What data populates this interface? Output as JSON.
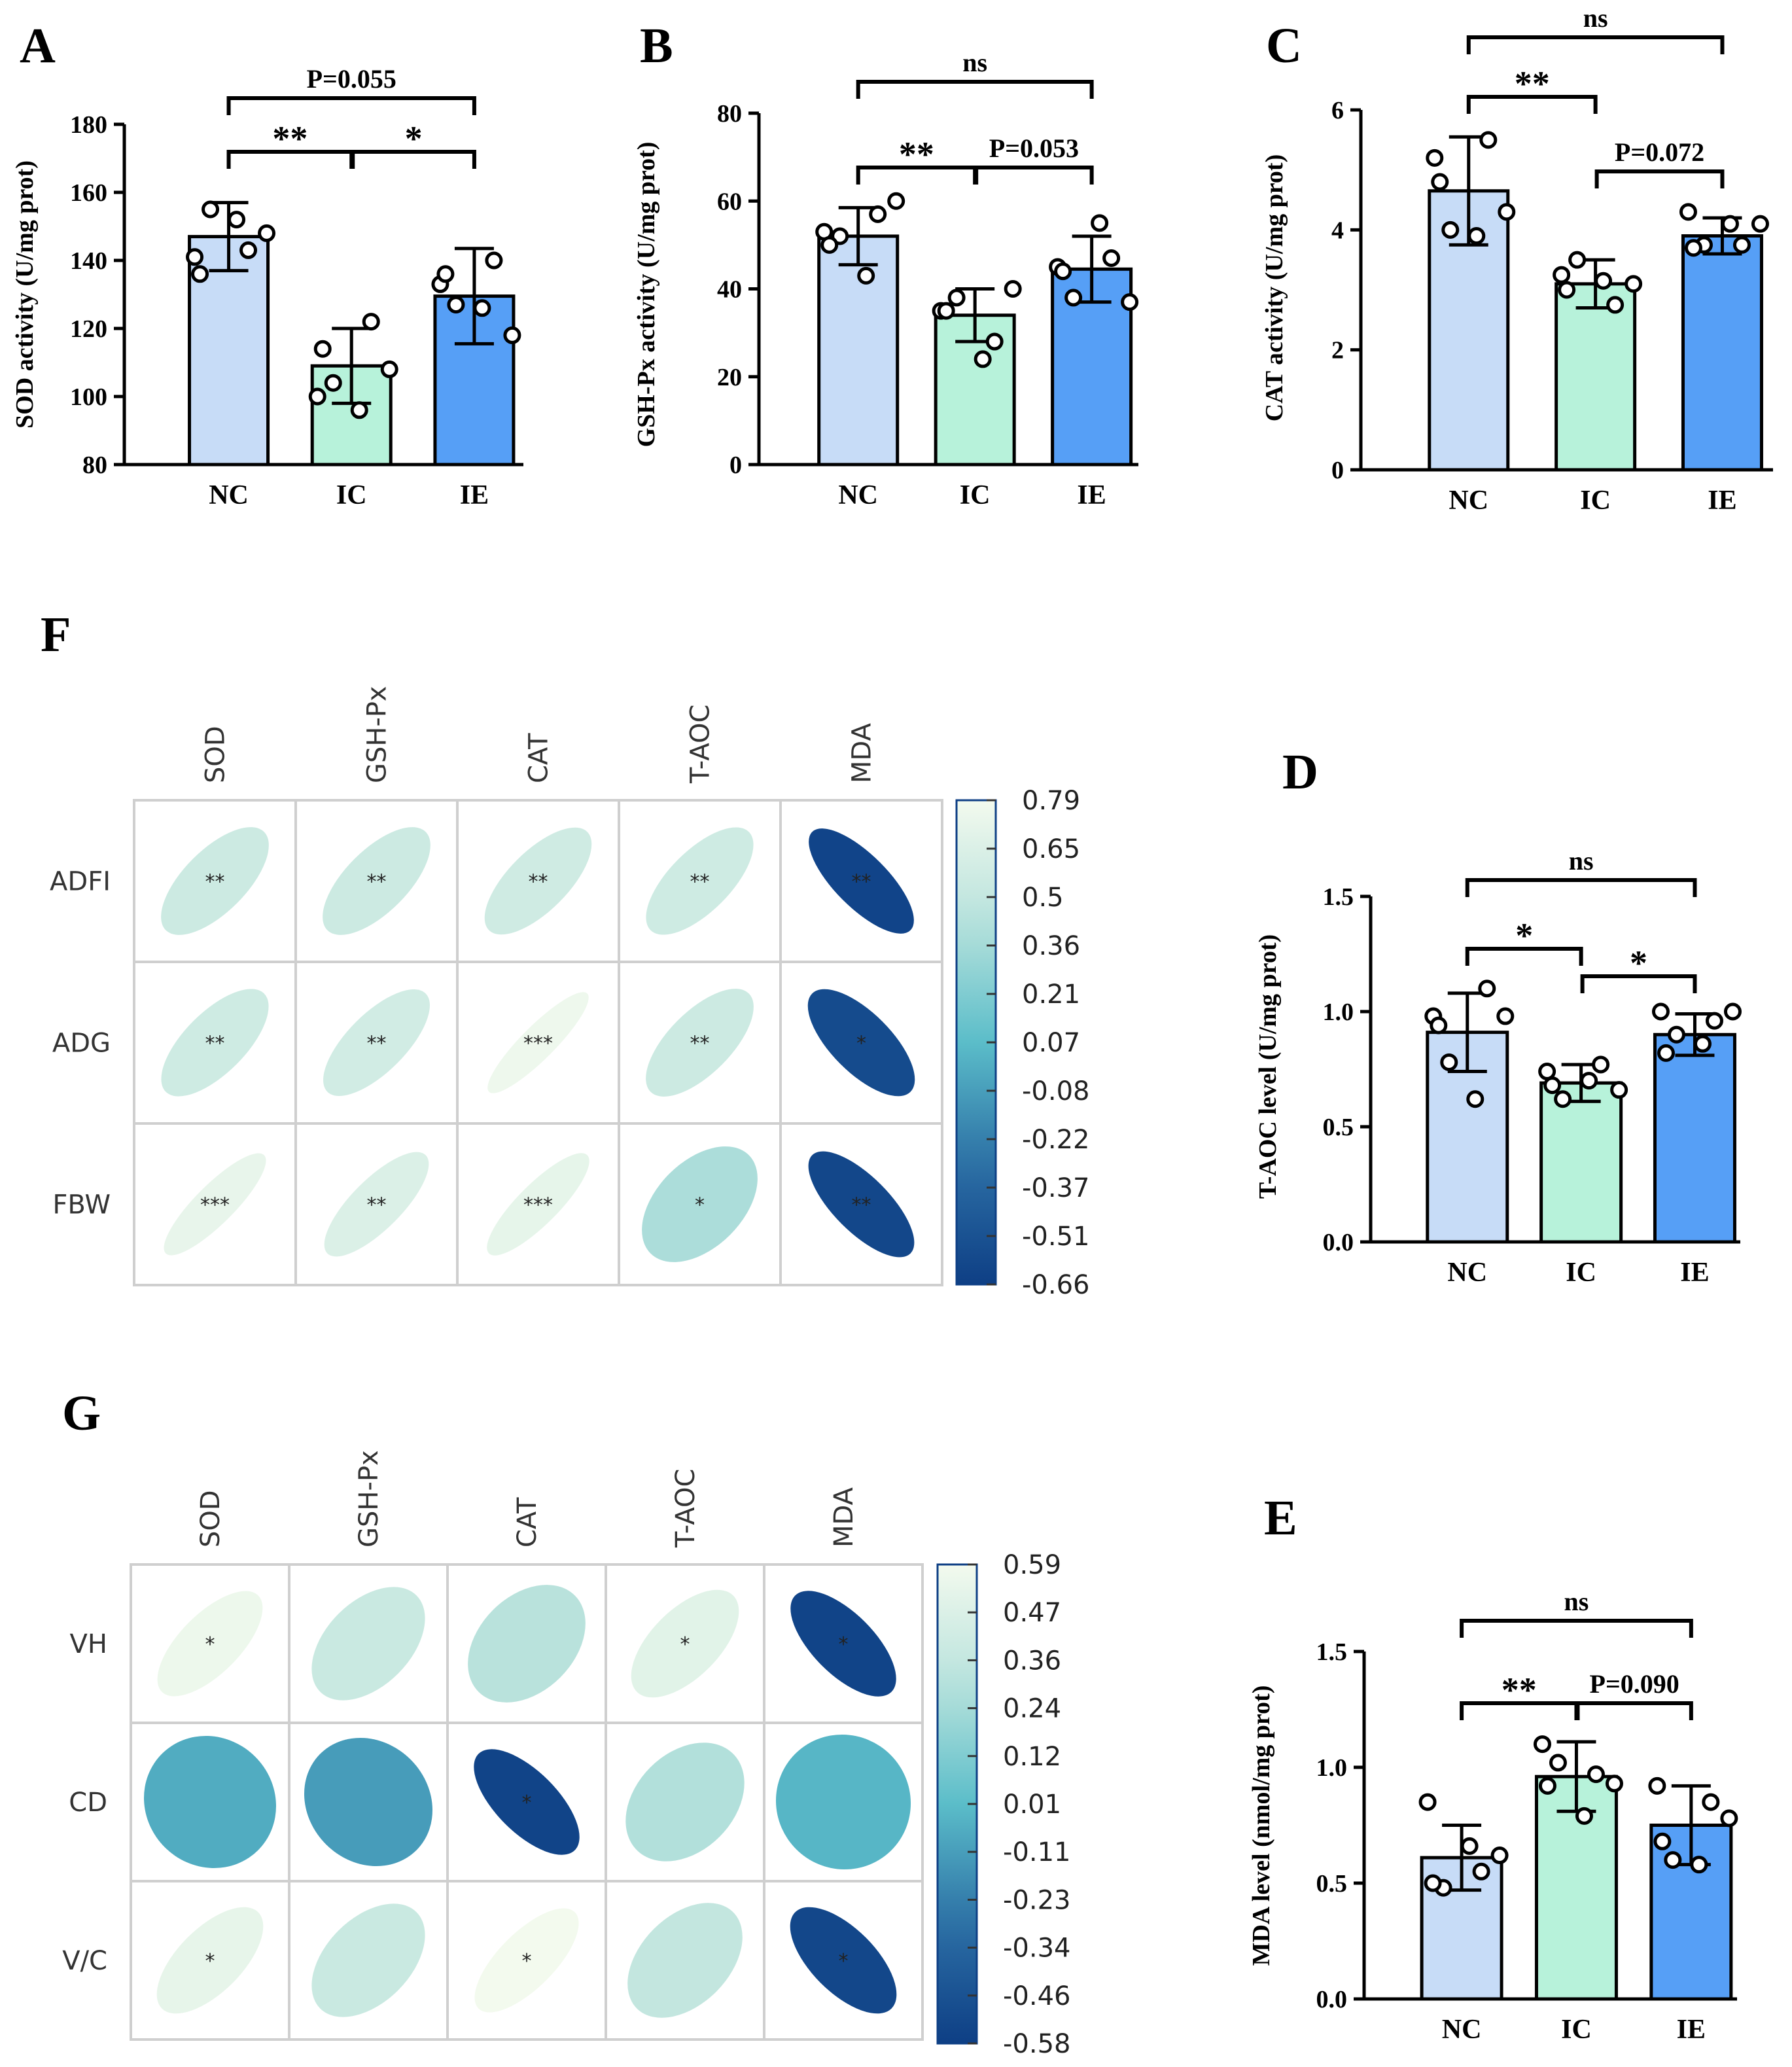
{
  "chart_data": [
    {
      "id": "A",
      "type": "bar",
      "panel_label": "A",
      "ylabel": "SOD activity (U/mg prot)",
      "ylim": [
        80,
        180
      ],
      "yticks": [
        80,
        100,
        120,
        140,
        160,
        180
      ],
      "categories": [
        "NC",
        "IC",
        "IE"
      ],
      "colors": [
        "#c7dcf7",
        "#b7f2da",
        "#569ff6"
      ],
      "values": [
        147,
        109,
        129.5
      ],
      "errors": [
        10,
        11,
        14
      ],
      "points": [
        [
          141,
          143,
          148,
          155,
          152,
          136
        ],
        [
          100,
          122,
          108,
          104,
          96,
          114
        ],
        [
          133,
          140,
          118,
          127,
          126,
          136
        ]
      ],
      "comparisons": [
        {
          "from": 0,
          "to": 1,
          "label": "**",
          "level": 1
        },
        {
          "from": 1,
          "to": 2,
          "label": "*",
          "level": 1
        },
        {
          "from": 0,
          "to": 2,
          "label": "P=0.055",
          "level": 2
        }
      ]
    },
    {
      "id": "B",
      "type": "bar",
      "panel_label": "B",
      "ylabel": "GSH-Px activity (U/mg prot)",
      "ylim": [
        0,
        80
      ],
      "yticks": [
        0,
        20,
        40,
        60,
        80
      ],
      "categories": [
        "NC",
        "IC",
        "IE"
      ],
      "colors": [
        "#c7dcf7",
        "#b7f2da",
        "#569ff6"
      ],
      "values": [
        52,
        34,
        44.5
      ],
      "errors": [
        6.5,
        6,
        7.5
      ],
      "points": [
        [
          53,
          57,
          60,
          52,
          43,
          50
        ],
        [
          35,
          28,
          40,
          38,
          24,
          35
        ],
        [
          45,
          47,
          37,
          38,
          55,
          44
        ]
      ],
      "comparisons": [
        {
          "from": 0,
          "to": 1,
          "label": "**",
          "level": 1
        },
        {
          "from": 1,
          "to": 2,
          "label": "P=0.053",
          "level": 1
        },
        {
          "from": 0,
          "to": 2,
          "label": "ns",
          "level": 2
        }
      ]
    },
    {
      "id": "C",
      "type": "bar",
      "panel_label": "C",
      "ylabel": "CAT activity (U/mg prot)",
      "ylim": [
        0,
        6
      ],
      "yticks": [
        0,
        2,
        4,
        6
      ],
      "categories": [
        "NC",
        "IC",
        "IE"
      ],
      "colors": [
        "#c7dcf7",
        "#b7f2da",
        "#569ff6"
      ],
      "values": [
        4.65,
        3.1,
        3.9
      ],
      "errors": [
        0.9,
        0.4,
        0.3
      ],
      "points": [
        [
          5.2,
          5.5,
          4.3,
          4.0,
          3.9,
          4.8
        ],
        [
          3.25,
          2.75,
          3.1,
          3.5,
          3.15,
          3.0
        ],
        [
          4.3,
          3.75,
          4.1,
          3.75,
          4.1,
          3.7
        ]
      ],
      "comparisons": [
        {
          "from": 0,
          "to": 1,
          "label": "**",
          "level": 1
        },
        {
          "from": 1,
          "to": 2,
          "label": "P=0.072",
          "level": 1
        },
        {
          "from": 0,
          "to": 2,
          "label": "ns",
          "level": 2
        }
      ]
    },
    {
      "id": "D",
      "type": "bar",
      "panel_label": "D",
      "ylabel": "T-AOC level (U/mg prot)",
      "ylim": [
        0,
        1.5
      ],
      "yticks": [
        0.0,
        0.5,
        1.0,
        1.5
      ],
      "categories": [
        "NC",
        "IC",
        "IE"
      ],
      "colors": [
        "#c7dcf7",
        "#b7f2da",
        "#569ff6"
      ],
      "values": [
        0.91,
        0.69,
        0.9
      ],
      "errors": [
        0.17,
        0.08,
        0.09
      ],
      "points": [
        [
          0.98,
          1.1,
          0.98,
          0.78,
          0.62,
          0.94
        ],
        [
          0.74,
          0.77,
          0.66,
          0.62,
          0.7,
          0.68
        ],
        [
          1.0,
          0.96,
          1.0,
          0.9,
          0.86,
          0.82
        ]
      ],
      "comparisons": [
        {
          "from": 0,
          "to": 1,
          "label": "*",
          "level": 1
        },
        {
          "from": 1,
          "to": 2,
          "label": "*",
          "level": 1
        },
        {
          "from": 0,
          "to": 2,
          "label": "ns",
          "level": 2
        }
      ]
    },
    {
      "id": "E",
      "type": "bar",
      "panel_label": "E",
      "ylabel": "MDA level (nmol/mg prot)",
      "ylim": [
        0,
        1.5
      ],
      "yticks": [
        0.0,
        0.5,
        1.0,
        1.5
      ],
      "categories": [
        "NC",
        "IC",
        "IE"
      ],
      "colors": [
        "#c7dcf7",
        "#b7f2da",
        "#569ff6"
      ],
      "values": [
        0.61,
        0.96,
        0.75
      ],
      "errors": [
        0.14,
        0.15,
        0.17
      ],
      "points": [
        [
          0.85,
          0.55,
          0.62,
          0.48,
          0.66,
          0.5
        ],
        [
          1.1,
          0.97,
          0.93,
          1.02,
          0.79,
          0.92
        ],
        [
          0.92,
          0.85,
          0.78,
          0.6,
          0.58,
          0.68
        ]
      ],
      "comparisons": [
        {
          "from": 0,
          "to": 1,
          "label": "**",
          "level": 1
        },
        {
          "from": 1,
          "to": 2,
          "label": "P=0.090",
          "level": 1
        },
        {
          "from": 0,
          "to": 2,
          "label": "ns",
          "level": 2
        }
      ]
    },
    {
      "id": "F",
      "type": "heatmap",
      "panel_label": "F",
      "columns": [
        "SOD",
        "GSH-Px",
        "CAT",
        "T-AOC",
        "MDA"
      ],
      "rows": [
        "ADFI",
        "ADG",
        "FBW"
      ],
      "values": [
        [
          0.55,
          0.55,
          0.57,
          0.56,
          -0.62
        ],
        [
          0.56,
          0.58,
          0.76,
          0.55,
          -0.57
        ],
        [
          0.72,
          0.64,
          0.71,
          0.38,
          -0.6
        ]
      ],
      "significance": [
        [
          "**",
          "**",
          "**",
          "**",
          "**"
        ],
        [
          "**",
          "**",
          "***",
          "**",
          "*"
        ],
        [
          "***",
          "**",
          "***",
          "*",
          "**"
        ]
      ],
      "colorbar_ticks": [
        "0.79",
        "0.65",
        "0.5",
        "0.36",
        "0.21",
        "0.07",
        "-0.08",
        "-0.22",
        "-0.37",
        "-0.51",
        "-0.66"
      ],
      "vmin": -0.66,
      "vmax": 0.79
    },
    {
      "id": "G",
      "type": "heatmap",
      "panel_label": "G",
      "columns": [
        "SOD",
        "GSH-Px",
        "CAT",
        "T-AOC",
        "MDA"
      ],
      "rows": [
        "VH",
        "CD",
        "V/C"
      ],
      "values": [
        [
          0.56,
          0.38,
          0.3,
          0.5,
          -0.55
        ],
        [
          -0.06,
          -0.12,
          -0.55,
          0.28,
          -0.02
        ],
        [
          0.53,
          0.38,
          0.59,
          0.35,
          -0.53
        ]
      ],
      "significance": [
        [
          "*",
          "",
          "",
          "*",
          "*"
        ],
        [
          "",
          "",
          "*",
          "",
          ""
        ],
        [
          "*",
          "",
          "*",
          "",
          "*"
        ]
      ],
      "colorbar_ticks": [
        "0.59",
        "0.47",
        "0.36",
        "0.24",
        "0.12",
        "0.01",
        "-0.11",
        "-0.23",
        "-0.34",
        "-0.46",
        "-0.58"
      ],
      "vmin": -0.58,
      "vmax": 0.59
    }
  ]
}
